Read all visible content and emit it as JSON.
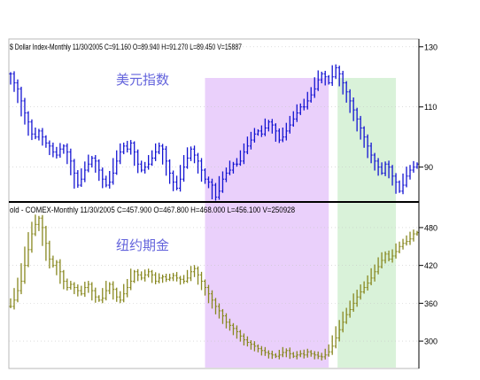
{
  "chart_data": [
    {
      "type": "line",
      "panel_id": "top",
      "header": "$ Dollar Index-Monthly   11/30/2005  C=91.160  O=89.940  H=91.270  L=89.450  V=15887",
      "label": "美元指数",
      "ylim": [
        79,
        132
      ],
      "yticks": [
        130,
        110,
        90
      ],
      "grid": true,
      "series": [
        {
          "color": "#1414d2",
          "x": [
            0,
            2,
            4,
            6,
            8,
            10,
            12,
            14,
            16,
            18,
            20,
            22,
            24,
            26,
            28,
            30,
            32,
            34,
            36,
            38,
            40,
            42,
            44,
            46,
            48,
            50,
            52,
            54,
            56,
            58,
            60,
            62,
            64,
            66,
            68,
            70,
            72,
            74,
            76,
            78,
            80,
            82,
            84,
            86,
            88,
            90,
            92,
            94,
            96,
            98,
            100,
            102,
            104,
            106,
            108,
            110,
            112,
            114,
            116,
            118,
            120,
            122,
            124,
            126,
            128,
            130,
            132,
            134,
            136,
            138,
            140,
            142,
            144,
            146,
            148,
            150,
            152,
            154,
            156,
            158,
            160,
            162,
            164,
            166,
            168,
            170,
            172,
            174,
            176,
            178,
            180,
            182,
            184,
            186,
            188,
            190,
            192,
            194,
            196,
            198,
            200,
            202,
            204,
            206,
            208,
            210,
            212,
            214,
            216,
            218,
            220,
            222,
            224,
            226,
            228,
            230
          ],
          "y": [
            121,
            118,
            116,
            112,
            108,
            105,
            101,
            100,
            102,
            100,
            98,
            97,
            95,
            94,
            96,
            97,
            95,
            92,
            88,
            84,
            86,
            89,
            91,
            93,
            92,
            89,
            86,
            84,
            85,
            88,
            92,
            95,
            97,
            96,
            98,
            95,
            91,
            89,
            90,
            91,
            93,
            95,
            97,
            96,
            92,
            88,
            85,
            83,
            86,
            90,
            93,
            96,
            94,
            92,
            89,
            86,
            85,
            84,
            80,
            82,
            86,
            88,
            89,
            91,
            91,
            92,
            95,
            97,
            99,
            101,
            102,
            101,
            103,
            105,
            104,
            102,
            99,
            100,
            102,
            104,
            106,
            108,
            110,
            110,
            112,
            114,
            116,
            119,
            121,
            120,
            118,
            120,
            123,
            121,
            118,
            115,
            112,
            109,
            106,
            103,
            100,
            97,
            94,
            92,
            90,
            88,
            91,
            90,
            87,
            85,
            82,
            84,
            87,
            89,
            90,
            91
          ]
        }
      ]
    },
    {
      "type": "line",
      "panel_id": "bottom",
      "header": "old - COMEX-Monthly   11/30/2005  C=457.900  O=467.800  H=468.000  L=456.100  V=250928",
      "label": "纽约期金",
      "ylim": [
        258,
        515
      ],
      "yticks": [
        480,
        420,
        360,
        300
      ],
      "grid": true,
      "series": [
        {
          "color": "#888820",
          "x": [
            0,
            2,
            4,
            6,
            8,
            10,
            12,
            14,
            16,
            18,
            20,
            22,
            24,
            26,
            28,
            30,
            32,
            34,
            36,
            38,
            40,
            42,
            44,
            46,
            48,
            50,
            52,
            54,
            56,
            58,
            60,
            62,
            64,
            66,
            68,
            70,
            72,
            74,
            76,
            78,
            80,
            82,
            84,
            86,
            88,
            90,
            92,
            94,
            96,
            98,
            100,
            102,
            104,
            106,
            108,
            110,
            112,
            114,
            116,
            118,
            120,
            122,
            124,
            126,
            128,
            130,
            132,
            134,
            136,
            138,
            140,
            142,
            144,
            146,
            148,
            150,
            152,
            154,
            156,
            158,
            160,
            162,
            164,
            166,
            168,
            170,
            172,
            174,
            176,
            178,
            180,
            182,
            184,
            186,
            188,
            190,
            192,
            194,
            196,
            198,
            200,
            202,
            204,
            206,
            208,
            210,
            212,
            214,
            216,
            218,
            220,
            222,
            224,
            226,
            228,
            230
          ],
          "y": [
            355,
            365,
            380,
            395,
            420,
            445,
            470,
            485,
            495,
            480,
            455,
            430,
            420,
            425,
            410,
            395,
            385,
            390,
            385,
            380,
            375,
            385,
            390,
            380,
            370,
            365,
            368,
            380,
            390,
            382,
            370,
            365,
            375,
            385,
            395,
            410,
            405,
            400,
            405,
            410,
            405,
            395,
            400,
            402,
            398,
            400,
            404,
            400,
            398,
            395,
            400,
            410,
            415,
            405,
            395,
            385,
            375,
            365,
            355,
            348,
            340,
            330,
            325,
            320,
            315,
            308,
            302,
            298,
            295,
            292,
            288,
            285,
            282,
            280,
            278,
            276,
            278,
            282,
            285,
            280,
            276,
            278,
            280,
            278,
            283,
            280,
            278,
            276,
            275,
            278,
            283,
            292,
            305,
            318,
            330,
            342,
            350,
            360,
            370,
            378,
            385,
            392,
            400,
            410,
            418,
            428,
            438,
            430,
            435,
            442,
            450,
            455,
            458,
            462,
            470,
            472
          ]
        }
      ]
    }
  ],
  "shading": [
    {
      "name": "purple-band",
      "x_range": [
        110,
        180
      ],
      "color": "#e6c8fa"
    },
    {
      "name": "green-band",
      "x_range": [
        185,
        218
      ],
      "color": "#d2f0d2"
    }
  ]
}
